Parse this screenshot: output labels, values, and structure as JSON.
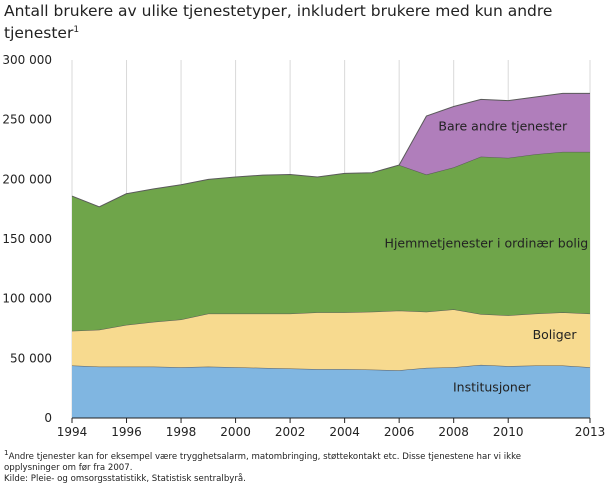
{
  "title": "Antall brukere av ulike tjenestetyper, inkludert brukere med kun andre tjenester",
  "title_footnote_mark": "1",
  "footnote": {
    "mark": "1",
    "line1": "Andre tjenester kan for eksempel være trygghetsalarm, matombringing, støttekontakt etc. Disse tjenestene har vi ikke",
    "line2": "opplysninger om før fra 2007.",
    "source": "Kilde: Pleie- og omsorgsstatistikk, Statistisk sentralbyrå."
  },
  "colors": {
    "institusjoner": "#80b6e1",
    "boliger": "#f7da8f",
    "hjemmetjenester": "#6fa54a",
    "bare_andre": "#b07ebb",
    "line": "#5a5a5a",
    "grid": "#d9d9d9"
  },
  "chart_data": {
    "type": "area",
    "stacked": true,
    "x": [
      1994,
      1995,
      1996,
      1997,
      1998,
      1999,
      2000,
      2001,
      2002,
      2003,
      2004,
      2005,
      2006,
      2007,
      2008,
      2009,
      2010,
      2011,
      2012,
      2013
    ],
    "xticks": [
      "1994",
      "1996",
      "1998",
      "2000",
      "2002",
      "2004",
      "2006",
      "2008",
      "2010",
      "2013"
    ],
    "xtick_values": [
      1994,
      1996,
      1998,
      2000,
      2002,
      2004,
      2006,
      2008,
      2010,
      2013
    ],
    "xlim": [
      1994,
      2013
    ],
    "ylim": [
      0,
      300000
    ],
    "yticks": [
      0,
      50000,
      100000,
      150000,
      200000,
      250000,
      300000
    ],
    "ytick_labels": [
      "0",
      "50 000",
      "100 000",
      "150 000",
      "200 000",
      "250 000",
      "300 000"
    ],
    "grid": "vertical",
    "series": [
      {
        "name": "Institusjoner",
        "key": "institusjoner",
        "values": [
          44000,
          43000,
          43000,
          43000,
          42500,
          43000,
          42500,
          42000,
          41500,
          41000,
          41000,
          40500,
          40000,
          42000,
          42500,
          44500,
          43500,
          44000,
          44000,
          42500
        ]
      },
      {
        "name": "Boliger",
        "key": "boliger",
        "values": [
          29000,
          31000,
          35000,
          37500,
          40000,
          44500,
          45000,
          45500,
          46000,
          47500,
          47500,
          48500,
          50000,
          47000,
          48500,
          42500,
          42500,
          43500,
          44500,
          45000
        ]
      },
      {
        "name": "Hjemmetjenester i ordinær bolig",
        "key": "hjemmetjenester",
        "values": [
          113000,
          103000,
          110000,
          111500,
          113000,
          112500,
          114500,
          116000,
          116500,
          113500,
          116500,
          116500,
          122000,
          115000,
          119000,
          132000,
          132000,
          133500,
          134500,
          135500
        ]
      },
      {
        "name": "Bare andre tjenester",
        "key": "bare_andre",
        "values": [
          0,
          0,
          0,
          0,
          0,
          0,
          0,
          0,
          0,
          0,
          0,
          0,
          0,
          49000,
          51000,
          48000,
          48000,
          48000,
          49000,
          49000
        ]
      }
    ]
  }
}
